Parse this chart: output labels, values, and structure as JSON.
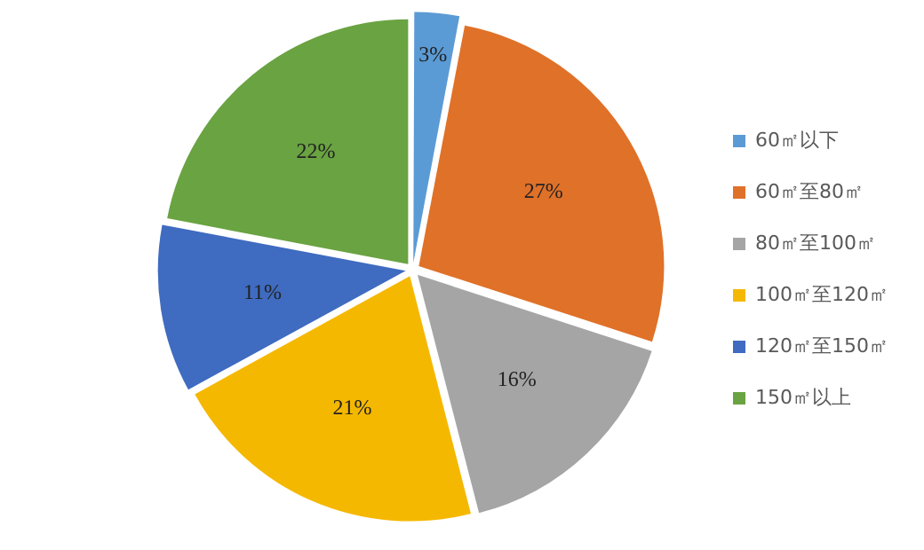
{
  "chart_data": {
    "type": "pie",
    "categories": [
      "60㎡以下",
      "60㎡至80㎡",
      "80㎡至100㎡",
      "100㎡至120㎡",
      "120㎡至150㎡",
      "150㎡以上"
    ],
    "values": [
      3,
      27,
      16,
      21,
      11,
      22
    ],
    "value_labels": [
      "3%",
      "27%",
      "16%",
      "21%",
      "11%",
      "22%"
    ],
    "colors": [
      "#5b9bd5",
      "#e07128",
      "#a5a5a5",
      "#f5b800",
      "#3f6bc0",
      "#6aa342"
    ],
    "legend": "right"
  }
}
